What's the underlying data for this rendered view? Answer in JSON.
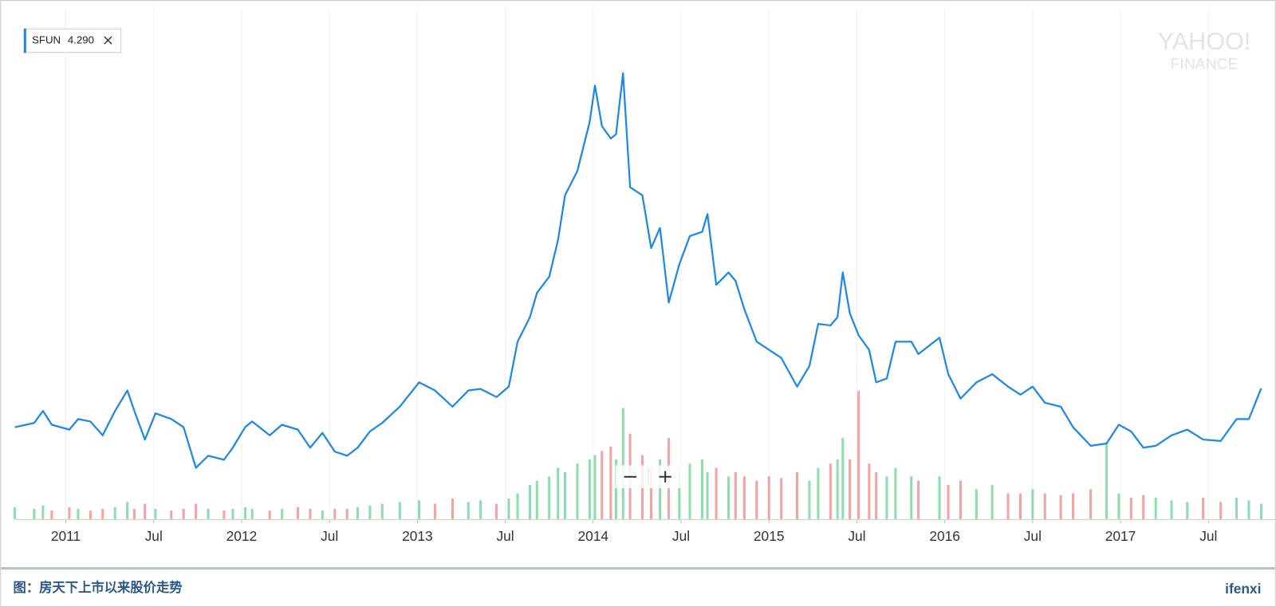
{
  "chart_data": {
    "type": "line",
    "legend": {
      "name": "SFUN",
      "value": {
        "value": 4.29,
        "label": "4.290"
      }
    },
    "watermark": [
      "YAHOO!",
      "FINANCE"
    ],
    "caption": "图：房天下上市以来股价走势",
    "brand": "ifenxi",
    "xlim": [
      2010.71,
      2017.8
    ],
    "ylim": [
      0,
      16
    ],
    "xticks": [
      {
        "value": 2011,
        "label": "2011"
      },
      {
        "value": 2011.5,
        "label": "Jul"
      },
      {
        "value": 2012,
        "label": "2012"
      },
      {
        "value": 2012.5,
        "label": "Jul"
      },
      {
        "value": 2013,
        "label": "2013"
      },
      {
        "value": 2013.5,
        "label": "Jul"
      },
      {
        "value": 2014,
        "label": "2014"
      },
      {
        "value": 2014.5,
        "label": "Jul"
      },
      {
        "value": 2015,
        "label": "2015"
      },
      {
        "value": 2015.5,
        "label": "Jul"
      },
      {
        "value": 2016,
        "label": "2016"
      },
      {
        "value": 2016.5,
        "label": "Jul"
      },
      {
        "value": 2017,
        "label": "2017"
      },
      {
        "value": 2017.5,
        "label": "Jul"
      }
    ],
    "grid": true,
    "x": [
      2010.71,
      2010.82,
      2010.87,
      2010.92,
      2011.02,
      2011.07,
      2011.14,
      2011.21,
      2011.28,
      2011.35,
      2011.39,
      2011.45,
      2011.51,
      2011.6,
      2011.67,
      2011.74,
      2011.81,
      2011.9,
      2011.95,
      2012.02,
      2012.06,
      2012.16,
      2012.23,
      2012.32,
      2012.39,
      2012.46,
      2012.53,
      2012.6,
      2012.66,
      2012.73,
      2012.8,
      2012.9,
      2013.01,
      2013.1,
      2013.2,
      2013.29,
      2013.36,
      2013.45,
      2013.52,
      2013.57,
      2013.64,
      2013.68,
      2013.75,
      2013.8,
      2013.84,
      2013.91,
      2013.98,
      2014.01,
      2014.05,
      2014.1,
      2014.13,
      2014.17,
      2014.21,
      2014.28,
      2014.33,
      2014.38,
      2014.43,
      2014.49,
      2014.55,
      2014.62,
      2014.65,
      2014.7,
      2014.77,
      2014.81,
      2014.86,
      2014.93,
      2015.0,
      2015.07,
      2015.16,
      2015.23,
      2015.28,
      2015.35,
      2015.39,
      2015.42,
      2015.46,
      2015.51,
      2015.57,
      2015.61,
      2015.67,
      2015.72,
      2015.81,
      2015.85,
      2015.97,
      2016.02,
      2016.09,
      2016.18,
      2016.27,
      2016.36,
      2016.43,
      2016.5,
      2016.57,
      2016.66,
      2016.73,
      2016.83,
      2016.92,
      2016.99,
      2017.06,
      2017.13,
      2017.2,
      2017.29,
      2017.38,
      2017.47,
      2017.57,
      2017.66,
      2017.73,
      2017.8
    ],
    "series": [
      {
        "name": "SFUN",
        "color": "#1e88e5",
        "values": [
          3.0,
          3.14,
          3.54,
          3.08,
          2.92,
          3.27,
          3.19,
          2.73,
          3.54,
          4.22,
          3.54,
          2.59,
          3.46,
          3.27,
          3.0,
          1.65,
          2.05,
          1.92,
          2.32,
          3.0,
          3.19,
          2.73,
          3.08,
          2.92,
          2.32,
          2.81,
          2.19,
          2.05,
          2.32,
          2.86,
          3.14,
          3.68,
          4.49,
          4.22,
          3.68,
          4.22,
          4.27,
          4.0,
          4.35,
          5.84,
          6.65,
          7.46,
          8.0,
          9.22,
          10.7,
          11.51,
          13.14,
          14.35,
          13.0,
          12.59,
          12.73,
          14.76,
          10.97,
          10.7,
          8.95,
          9.62,
          7.14,
          8.41,
          9.35,
          9.49,
          10.08,
          7.73,
          8.14,
          7.86,
          6.92,
          5.84,
          5.57,
          5.3,
          4.35,
          5.03,
          6.43,
          6.38,
          6.65,
          8.14,
          6.78,
          6.05,
          5.57,
          4.49,
          4.62,
          5.84,
          5.84,
          5.43,
          5.97,
          4.76,
          3.95,
          4.49,
          4.76,
          4.35,
          4.08,
          4.35,
          3.81,
          3.68,
          3.0,
          2.38,
          2.46,
          3.08,
          2.86,
          2.32,
          2.38,
          2.73,
          2.92,
          2.59,
          2.54,
          3.27,
          3.27,
          4.29
        ]
      }
    ],
    "volume": {
      "up_color": "#8fdcae",
      "down_color": "#f2a3a3",
      "ylim": [
        0,
        160
      ],
      "values": [
        14,
        12,
        16,
        10,
        14,
        12,
        10,
        12,
        14,
        20,
        12,
        18,
        12,
        10,
        12,
        18,
        12,
        10,
        12,
        14,
        12,
        10,
        12,
        14,
        12,
        10,
        12,
        12,
        14,
        16,
        18,
        20,
        22,
        18,
        24,
        20,
        22,
        18,
        24,
        30,
        40,
        45,
        50,
        60,
        55,
        65,
        70,
        75,
        80,
        85,
        70,
        130,
        100,
        75,
        60,
        70,
        95,
        60,
        65,
        70,
        55,
        60,
        50,
        55,
        50,
        45,
        50,
        48,
        55,
        45,
        60,
        65,
        70,
        95,
        70,
        150,
        65,
        55,
        50,
        60,
        50,
        45,
        50,
        40,
        45,
        35,
        40,
        30,
        30,
        35,
        30,
        28,
        30,
        35,
        90,
        30,
        25,
        28,
        25,
        22,
        20,
        25,
        20,
        25,
        22,
        18
      ]
    }
  }
}
